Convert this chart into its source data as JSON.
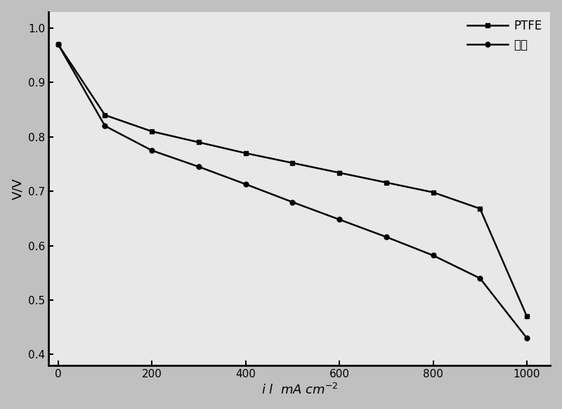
{
  "title": "",
  "xlabel": "$i$ $l$ mA cm$^{-2}$",
  "ylabel": "V/V",
  "background_color": "#c8c8c8",
  "plot_bg_color": "#ffffff",
  "xlim": [
    -20,
    1050
  ],
  "ylim": [
    0.38,
    1.03
  ],
  "xticks": [
    0,
    200,
    400,
    600,
    800,
    1000
  ],
  "yticks": [
    0.4,
    0.5,
    0.6,
    0.7,
    0.8,
    0.9,
    1.0
  ],
  "series": [
    {
      "label": "PTFE",
      "marker": "s",
      "color": "#000000",
      "linewidth": 1.8,
      "markersize": 5,
      "x": [
        0,
        100,
        200,
        300,
        400,
        500,
        600,
        700,
        800,
        900,
        1000
      ],
      "y": [
        0.97,
        0.84,
        0.81,
        0.79,
        0.77,
        0.752,
        0.734,
        0.716,
        0.698,
        0.668,
        0.47
      ]
    },
    {
      "label": "素水",
      "marker": "o",
      "color": "#000000",
      "linewidth": 1.8,
      "markersize": 5,
      "x": [
        0,
        100,
        200,
        300,
        400,
        500,
        600,
        700,
        800,
        900,
        1000
      ],
      "y": [
        0.97,
        0.82,
        0.775,
        0.745,
        0.713,
        0.68,
        0.648,
        0.616,
        0.582,
        0.54,
        0.43
      ]
    }
  ],
  "legend_loc": "upper right",
  "legend_fontsize": 12,
  "tick_fontsize": 11,
  "label_fontsize": 13,
  "grid": false,
  "noise_seed": 42,
  "noise_alpha": 0.15
}
